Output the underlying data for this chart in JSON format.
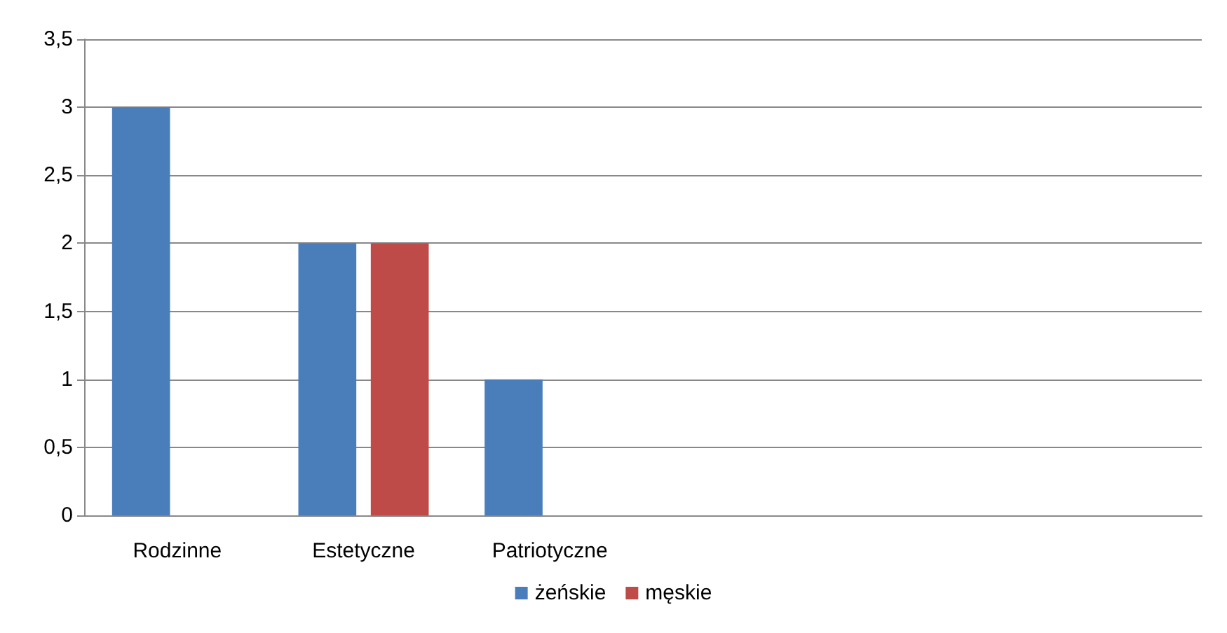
{
  "chart_data": {
    "type": "bar",
    "categories": [
      "Rodzinne",
      "Estetyczne",
      "Patriotyczne",
      null,
      null,
      null
    ],
    "series": [
      {
        "name": "żeńskie",
        "color": "#4a7ebb",
        "values": [
          3,
          2,
          1,
          null,
          null,
          null
        ]
      },
      {
        "name": "męskie",
        "color": "#be4b48",
        "values": [
          null,
          2,
          null,
          null,
          null,
          null
        ]
      }
    ],
    "ylim": [
      0,
      3.5
    ],
    "yticks": [
      0,
      {
        "value": 0.5,
        "label": "0,5"
      },
      1,
      {
        "value": 1.5,
        "label": "1,5"
      },
      2,
      {
        "value": 2.5,
        "label": "2,5"
      },
      3,
      {
        "value": 3.5,
        "label": "3,5"
      }
    ],
    "grid": "y",
    "legend": "bottom"
  }
}
